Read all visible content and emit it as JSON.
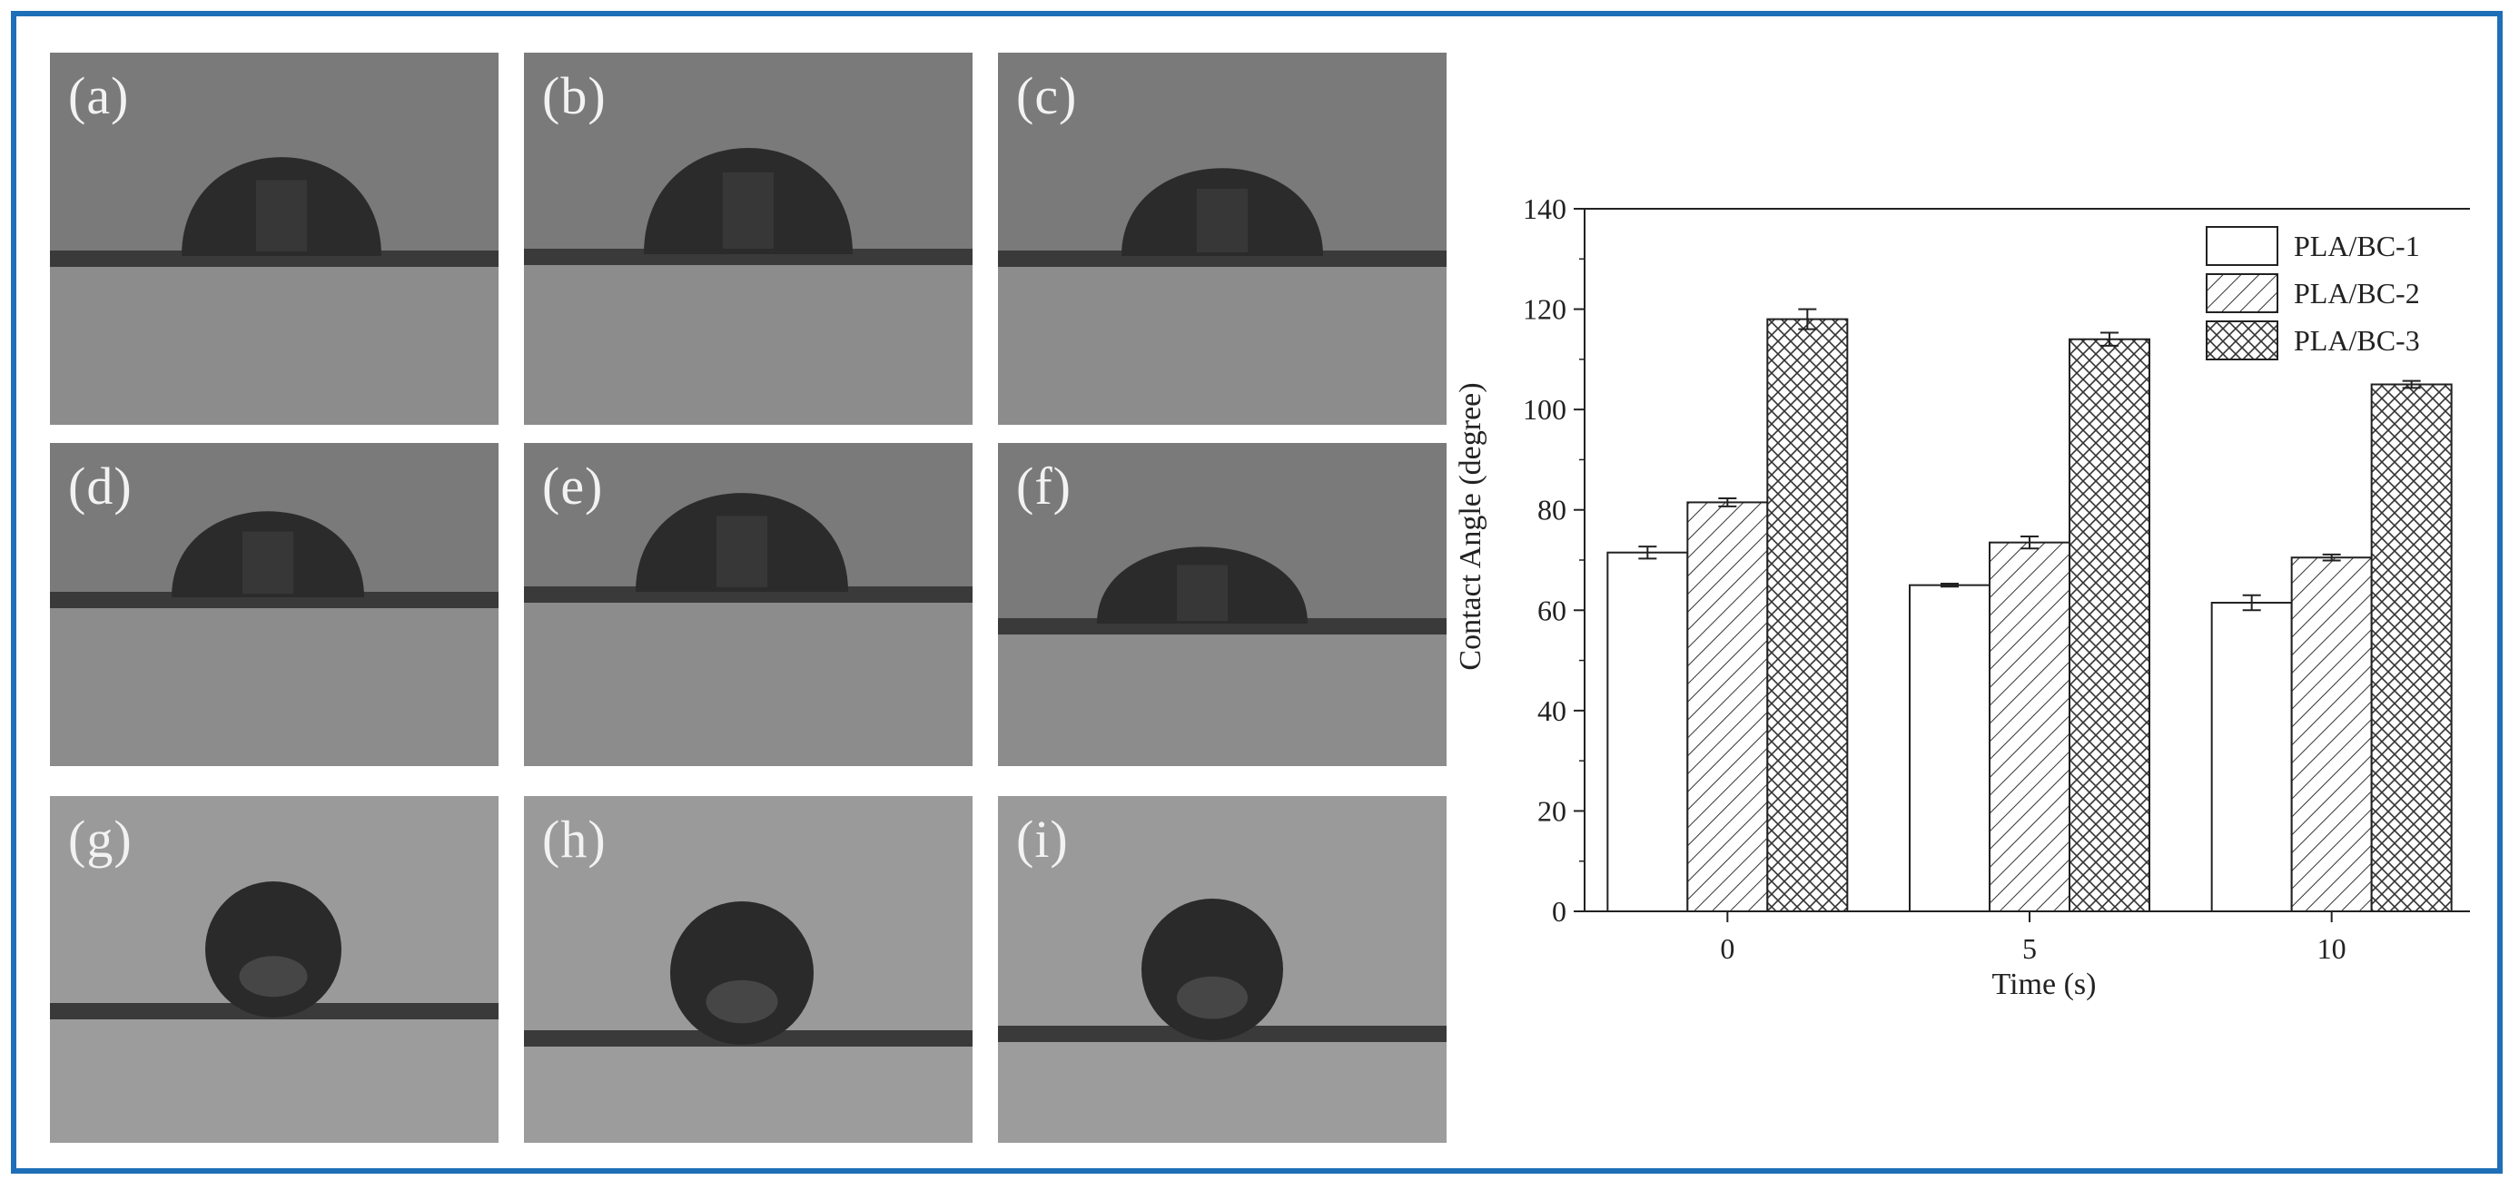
{
  "figure": {
    "panel_labels": [
      "(a)",
      "(b)",
      "(c)",
      "(d)",
      "(e)",
      "(f)",
      "(g)",
      "(h)",
      "(i)"
    ],
    "border_color": "#1f6fb8"
  },
  "chart_data": {
    "type": "bar",
    "categories": [
      "0",
      "5",
      "10"
    ],
    "xlabel": "Time (s)",
    "ylabel": "Contact Angle (degree)",
    "ylim": [
      0,
      140
    ],
    "yticks": [
      0,
      20,
      40,
      60,
      80,
      100,
      120,
      140
    ],
    "legend_position": "top-right",
    "series": [
      {
        "name": "PLA/BC-1",
        "pattern": "none",
        "values": [
          71.5,
          65.0,
          61.5
        ],
        "errors": [
          1.2,
          0.3,
          1.5
        ]
      },
      {
        "name": "PLA/BC-2",
        "pattern": "diagonal",
        "values": [
          81.5,
          73.5,
          70.5
        ],
        "errors": [
          0.8,
          1.2,
          0.6
        ]
      },
      {
        "name": "PLA/BC-3",
        "pattern": "crosshatch",
        "values": [
          118.0,
          114.0,
          105.0
        ],
        "errors": [
          2.0,
          1.3,
          0.7
        ]
      }
    ]
  }
}
